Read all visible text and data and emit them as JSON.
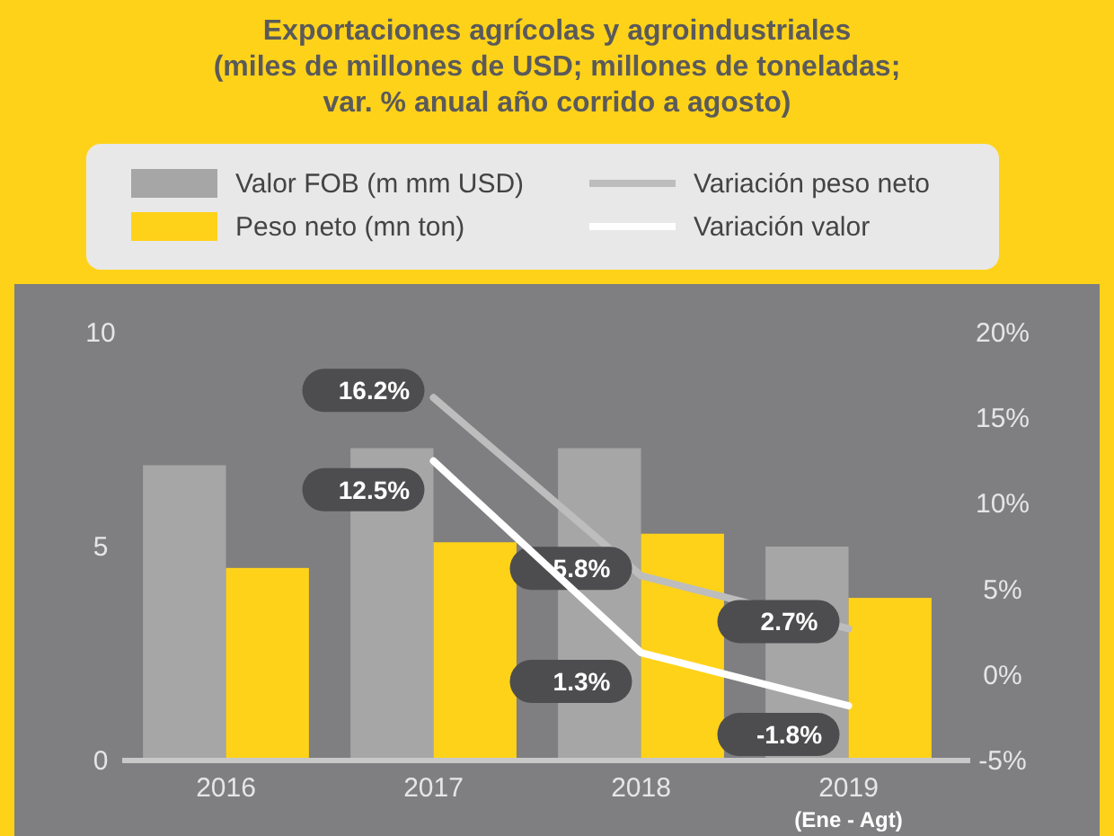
{
  "chart_data": {
    "type": "bar",
    "title": "Exportaciones agrícolas y agroindustriales\n(miles de millones de USD; millones de toneladas;\nvar. % anual año corrido a agosto)",
    "categories": [
      "2016",
      "2017",
      "2018",
      "2019"
    ],
    "series": [
      {
        "name": "Valor FOB (m mm USD)",
        "color": "#a6a6a6",
        "values": [
          6.9,
          7.3,
          7.3,
          5.0
        ]
      },
      {
        "name": "Peso neto (mn ton)",
        "color": "#ffd21a",
        "values": [
          4.5,
          5.1,
          5.3,
          3.8
        ]
      },
      {
        "name": "Variación peso neto",
        "type": "line",
        "axis": "y2",
        "color": "#bdbdbd",
        "values": [
          null,
          16.2,
          5.8,
          2.7
        ],
        "value_labels": [
          null,
          "16.2%",
          "5.8%",
          "2.7%"
        ]
      },
      {
        "name": "Variación valor",
        "type": "line",
        "axis": "y2",
        "color": "#ffffff",
        "values": [
          null,
          12.5,
          1.3,
          -1.8
        ],
        "value_labels": [
          null,
          "12.5%",
          "1.3%",
          "-1.8%"
        ]
      }
    ],
    "ylim": [
      0,
      10
    ],
    "yticks": [
      0,
      5,
      10
    ],
    "y2lim": [
      -5,
      20
    ],
    "y2ticks": [
      {
        "value": -5,
        "label": "-5%"
      },
      {
        "value": 0,
        "label": "0%"
      },
      {
        "value": 5,
        "label": "5%"
      },
      {
        "value": 10,
        "label": "10%"
      },
      {
        "value": 15,
        "label": "15%"
      },
      {
        "value": 20,
        "label": "20%"
      }
    ],
    "legend": "top",
    "annotations": [
      "(Ene - Agt)"
    ]
  }
}
